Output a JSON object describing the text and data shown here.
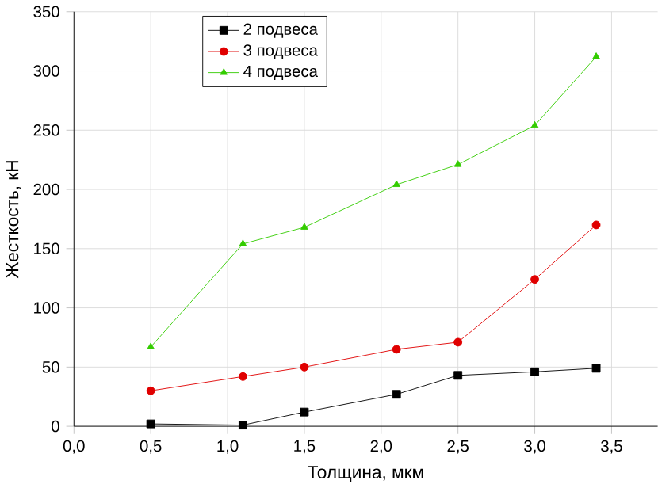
{
  "chart_data": {
    "type": "line",
    "xlabel": "Толщина, мкм",
    "ylabel": "Жесткость, кН",
    "x": [
      0.5,
      1.1,
      1.5,
      2.1,
      2.5,
      3.0,
      3.4
    ],
    "series": [
      {
        "name": "2 подвеса",
        "color": "#000000",
        "marker": "square",
        "values": [
          2,
          1,
          12,
          27,
          43,
          46,
          49
        ]
      },
      {
        "name": "3 подвеса",
        "color": "#e00000",
        "marker": "circle",
        "values": [
          30,
          42,
          50,
          65,
          71,
          124,
          170
        ]
      },
      {
        "name": "4 подвеса",
        "color": "#33cc00",
        "marker": "triangle",
        "values": [
          67,
          154,
          168,
          204,
          221,
          254,
          312
        ]
      }
    ],
    "xlim": [
      0,
      3.8
    ],
    "ylim": [
      0,
      350
    ],
    "xticks": [
      {
        "value": 0,
        "label": "0,0"
      },
      {
        "value": 0.5,
        "label": "0,5"
      },
      {
        "value": 1,
        "label": "1,0"
      },
      {
        "value": 1.5,
        "label": "1,5"
      },
      {
        "value": 2,
        "label": "2,0"
      },
      {
        "value": 2.5,
        "label": "2,5"
      },
      {
        "value": 3,
        "label": "3,0"
      },
      {
        "value": 3.5,
        "label": "3,5"
      }
    ],
    "yticks": [
      0,
      50,
      100,
      150,
      200,
      250,
      300,
      350
    ],
    "grid": true,
    "legend": "top left"
  }
}
